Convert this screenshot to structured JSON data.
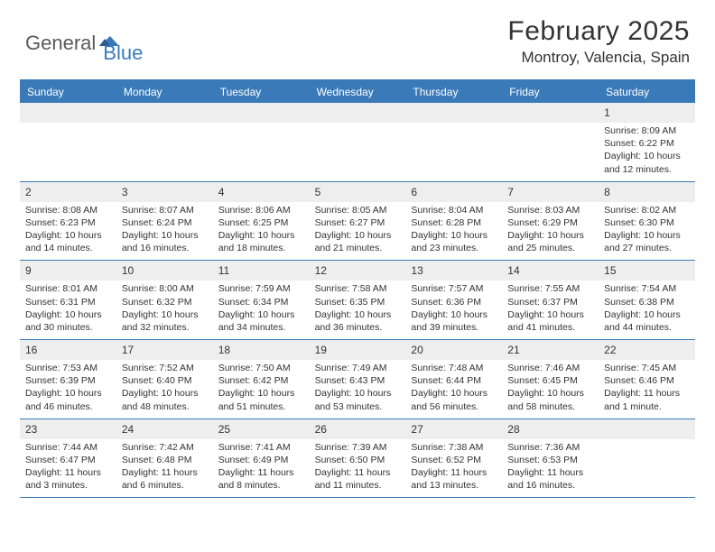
{
  "logo": {
    "part1": "General",
    "part2": "Blue"
  },
  "title": "February 2025",
  "location": "Montroy, Valencia, Spain",
  "colors": {
    "accent": "#3a7ab8",
    "header_bg": "#3a7ab8",
    "row_alt": "#eeeeee",
    "text": "#333333",
    "background": "#ffffff"
  },
  "daynames": [
    "Sunday",
    "Monday",
    "Tuesday",
    "Wednesday",
    "Thursday",
    "Friday",
    "Saturday"
  ],
  "layout": {
    "first_weekday_index": 6,
    "days_in_month": 28,
    "weeks": 5
  },
  "days": [
    {
      "n": "1",
      "sunrise": "8:09 AM",
      "sunset": "6:22 PM",
      "daylight": "10 hours and 12 minutes."
    },
    {
      "n": "2",
      "sunrise": "8:08 AM",
      "sunset": "6:23 PM",
      "daylight": "10 hours and 14 minutes."
    },
    {
      "n": "3",
      "sunrise": "8:07 AM",
      "sunset": "6:24 PM",
      "daylight": "10 hours and 16 minutes."
    },
    {
      "n": "4",
      "sunrise": "8:06 AM",
      "sunset": "6:25 PM",
      "daylight": "10 hours and 18 minutes."
    },
    {
      "n": "5",
      "sunrise": "8:05 AM",
      "sunset": "6:27 PM",
      "daylight": "10 hours and 21 minutes."
    },
    {
      "n": "6",
      "sunrise": "8:04 AM",
      "sunset": "6:28 PM",
      "daylight": "10 hours and 23 minutes."
    },
    {
      "n": "7",
      "sunrise": "8:03 AM",
      "sunset": "6:29 PM",
      "daylight": "10 hours and 25 minutes."
    },
    {
      "n": "8",
      "sunrise": "8:02 AM",
      "sunset": "6:30 PM",
      "daylight": "10 hours and 27 minutes."
    },
    {
      "n": "9",
      "sunrise": "8:01 AM",
      "sunset": "6:31 PM",
      "daylight": "10 hours and 30 minutes."
    },
    {
      "n": "10",
      "sunrise": "8:00 AM",
      "sunset": "6:32 PM",
      "daylight": "10 hours and 32 minutes."
    },
    {
      "n": "11",
      "sunrise": "7:59 AM",
      "sunset": "6:34 PM",
      "daylight": "10 hours and 34 minutes."
    },
    {
      "n": "12",
      "sunrise": "7:58 AM",
      "sunset": "6:35 PM",
      "daylight": "10 hours and 36 minutes."
    },
    {
      "n": "13",
      "sunrise": "7:57 AM",
      "sunset": "6:36 PM",
      "daylight": "10 hours and 39 minutes."
    },
    {
      "n": "14",
      "sunrise": "7:55 AM",
      "sunset": "6:37 PM",
      "daylight": "10 hours and 41 minutes."
    },
    {
      "n": "15",
      "sunrise": "7:54 AM",
      "sunset": "6:38 PM",
      "daylight": "10 hours and 44 minutes."
    },
    {
      "n": "16",
      "sunrise": "7:53 AM",
      "sunset": "6:39 PM",
      "daylight": "10 hours and 46 minutes."
    },
    {
      "n": "17",
      "sunrise": "7:52 AM",
      "sunset": "6:40 PM",
      "daylight": "10 hours and 48 minutes."
    },
    {
      "n": "18",
      "sunrise": "7:50 AM",
      "sunset": "6:42 PM",
      "daylight": "10 hours and 51 minutes."
    },
    {
      "n": "19",
      "sunrise": "7:49 AM",
      "sunset": "6:43 PM",
      "daylight": "10 hours and 53 minutes."
    },
    {
      "n": "20",
      "sunrise": "7:48 AM",
      "sunset": "6:44 PM",
      "daylight": "10 hours and 56 minutes."
    },
    {
      "n": "21",
      "sunrise": "7:46 AM",
      "sunset": "6:45 PM",
      "daylight": "10 hours and 58 minutes."
    },
    {
      "n": "22",
      "sunrise": "7:45 AM",
      "sunset": "6:46 PM",
      "daylight": "11 hours and 1 minute."
    },
    {
      "n": "23",
      "sunrise": "7:44 AM",
      "sunset": "6:47 PM",
      "daylight": "11 hours and 3 minutes."
    },
    {
      "n": "24",
      "sunrise": "7:42 AM",
      "sunset": "6:48 PM",
      "daylight": "11 hours and 6 minutes."
    },
    {
      "n": "25",
      "sunrise": "7:41 AM",
      "sunset": "6:49 PM",
      "daylight": "11 hours and 8 minutes."
    },
    {
      "n": "26",
      "sunrise": "7:39 AM",
      "sunset": "6:50 PM",
      "daylight": "11 hours and 11 minutes."
    },
    {
      "n": "27",
      "sunrise": "7:38 AM",
      "sunset": "6:52 PM",
      "daylight": "11 hours and 13 minutes."
    },
    {
      "n": "28",
      "sunrise": "7:36 AM",
      "sunset": "6:53 PM",
      "daylight": "11 hours and 16 minutes."
    }
  ],
  "labels": {
    "sunrise": "Sunrise:",
    "sunset": "Sunset:",
    "daylight": "Daylight:"
  }
}
